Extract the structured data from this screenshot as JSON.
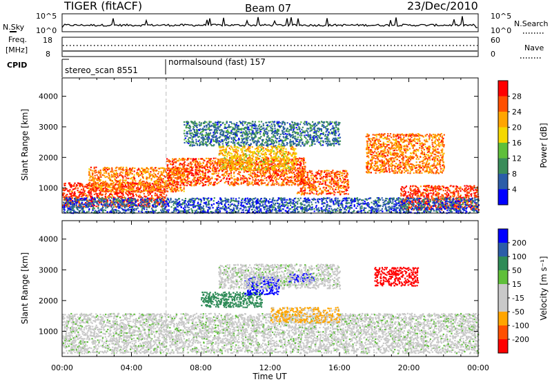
{
  "header": {
    "title": "TIGER (fitACF)",
    "beam": "Beam 07",
    "date": "23/Dec/2010"
  },
  "top_panels": {
    "nsky_label": "N.Sky",
    "nsky_ticks": [
      "10^5",
      "10^0"
    ],
    "nsearch_label": "N.Search",
    "nsearch_ticks": [
      "10^5",
      "10^0"
    ],
    "freq_label_1": "Freq.",
    "freq_label_2": "[MHz]",
    "freq_ticks": [
      "18",
      "8"
    ],
    "nave_label": "Nave",
    "nave_ticks": [
      "60",
      "0"
    ],
    "cpid_label": "CPID",
    "cpid_entries": [
      {
        "name": "stereo_scan 8551"
      },
      {
        "name": "normalsound (fast) 157"
      }
    ]
  },
  "time_axis": {
    "ticks": [
      "00:00",
      "04:00",
      "08:00",
      "12:00",
      "16:00",
      "20:00",
      "00:00"
    ],
    "label": "Time UT"
  },
  "colors": {
    "power": [
      "#0000ff",
      "#2b5da8",
      "#3a8c5a",
      "#5fbf3a",
      "#f5d800",
      "#ffa500",
      "#ff5000",
      "#ff0000"
    ],
    "velocity": [
      "#ff0000",
      "#ff5000",
      "#ffa500",
      "#c9c9c9",
      "#c9c9c9",
      "#5fbf3a",
      "#2e8b57",
      "#2b5da8",
      "#0000ff"
    ]
  },
  "chart_data": [
    {
      "type": "heatmap",
      "ylabel": "Slant Range [km]",
      "xlabel": "Time UT",
      "x_range": [
        "00:00",
        "24:00"
      ],
      "ylim": [
        180,
        4600
      ],
      "yticks": [
        "1000",
        "2000",
        "3000",
        "4000"
      ],
      "colorbar": {
        "label": "Power [dB]",
        "ticks": [
          "4",
          "8",
          "12",
          "16",
          "20",
          "24",
          "28"
        ],
        "range": [
          0,
          32
        ]
      },
      "regions": [
        {
          "t0": 0.0,
          "t1": 6.0,
          "r0": 400,
          "r1": 1200,
          "level": 28
        },
        {
          "t0": 1.5,
          "t1": 7.0,
          "r0": 900,
          "r1": 1700,
          "level": 24
        },
        {
          "t0": 6.0,
          "t1": 14.0,
          "r0": 1100,
          "r1": 2000,
          "level": 26
        },
        {
          "t0": 9.0,
          "t1": 13.5,
          "r0": 1600,
          "r1": 2400,
          "level": 20
        },
        {
          "t0": 7.0,
          "t1": 16.0,
          "r0": 2400,
          "r1": 3200,
          "level": 8
        },
        {
          "t0": 13.5,
          "t1": 16.5,
          "r0": 800,
          "r1": 1600,
          "level": 26
        },
        {
          "t0": 17.5,
          "t1": 22.0,
          "r0": 1500,
          "r1": 2800,
          "level": 24
        },
        {
          "t0": 19.5,
          "t1": 24.0,
          "r0": 300,
          "r1": 1100,
          "level": 28
        },
        {
          "t0": 0.0,
          "t1": 24.0,
          "r0": 200,
          "r1": 700,
          "level": 6
        }
      ]
    },
    {
      "type": "heatmap",
      "ylabel": "Slant Range [km]",
      "xlabel": "Time UT",
      "x_range": [
        "00:00",
        "24:00"
      ],
      "ylim": [
        180,
        4600
      ],
      "yticks": [
        "1000",
        "2000",
        "3000",
        "4000"
      ],
      "colorbar": {
        "label": "Velocity [m s⁻¹]",
        "ticks": [
          "200",
          "100",
          "50",
          "15",
          "-15",
          "-50",
          "-100",
          "-200"
        ],
        "range": [
          -250,
          250
        ]
      },
      "regions": [
        {
          "t0": 0.0,
          "t1": 24.0,
          "r0": 300,
          "r1": 1600,
          "level": 0
        },
        {
          "t0": 8.0,
          "t1": 11.5,
          "r0": 1800,
          "r1": 2300,
          "level": 70
        },
        {
          "t0": 10.5,
          "t1": 12.5,
          "r0": 2200,
          "r1": 2800,
          "level": 220
        },
        {
          "t0": 13.0,
          "t1": 14.5,
          "r0": 2600,
          "r1": 2900,
          "level": 220
        },
        {
          "t0": 12.0,
          "t1": 16.0,
          "r0": 1300,
          "r1": 1800,
          "level": -60
        },
        {
          "t0": 18.0,
          "t1": 20.5,
          "r0": 2500,
          "r1": 3100,
          "level": -220
        },
        {
          "t0": 9.0,
          "t1": 16.0,
          "r0": 2400,
          "r1": 3200,
          "level": 0
        }
      ]
    }
  ]
}
